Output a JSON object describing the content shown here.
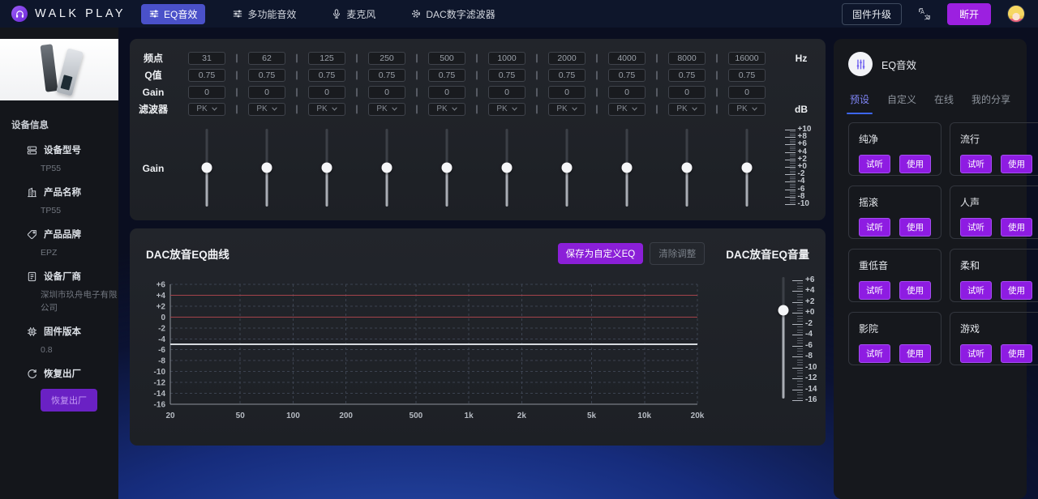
{
  "topbar": {
    "brand": "WALK PLAY",
    "tabs": [
      {
        "label": "EQ音效",
        "icon": "equalizer-icon",
        "active": true
      },
      {
        "label": "多功能音效",
        "icon": "equalizer-icon",
        "active": false
      },
      {
        "label": "麦克风",
        "icon": "mic-icon",
        "active": false
      },
      {
        "label": "DAC数字滤波器",
        "icon": "gear-icon",
        "active": false
      }
    ],
    "firmware_button": "固件升级",
    "disconnect_button": "断开"
  },
  "sidebar": {
    "section_title": "设备信息",
    "items": [
      {
        "icon": "device-model-icon",
        "label": "设备型号",
        "value": "TP55"
      },
      {
        "icon": "product-name-icon",
        "label": "产品名称",
        "value": "TP55"
      },
      {
        "icon": "brand-tag-icon",
        "label": "产品品牌",
        "value": "EPZ"
      },
      {
        "icon": "manufacturer-icon",
        "label": "设备厂商",
        "value": "深圳市玖舟电子有限公司"
      },
      {
        "icon": "firmware-chip-icon",
        "label": "固件版本",
        "value": "0.8"
      },
      {
        "icon": "factory-reset-icon",
        "label": "恢复出厂",
        "value": null,
        "button": "恢复出厂"
      }
    ]
  },
  "eq": {
    "row_labels": {
      "freq": "频点",
      "q": "Q值",
      "gain": "Gain",
      "filter": "滤波器",
      "slider": "Gain"
    },
    "units": {
      "freq": "Hz",
      "filter": "dB"
    },
    "bands": [
      {
        "freq": "31",
        "q": "0.75",
        "gain": "0",
        "filter": "PK"
      },
      {
        "freq": "62",
        "q": "0.75",
        "gain": "0",
        "filter": "PK"
      },
      {
        "freq": "125",
        "q": "0.75",
        "gain": "0",
        "filter": "PK"
      },
      {
        "freq": "250",
        "q": "0.75",
        "gain": "0",
        "filter": "PK"
      },
      {
        "freq": "500",
        "q": "0.75",
        "gain": "0",
        "filter": "PK"
      },
      {
        "freq": "1000",
        "q": "0.75",
        "gain": "0",
        "filter": "PK"
      },
      {
        "freq": "2000",
        "q": "0.75",
        "gain": "0",
        "filter": "PK"
      },
      {
        "freq": "4000",
        "q": "0.75",
        "gain": "0",
        "filter": "PK"
      },
      {
        "freq": "8000",
        "q": "0.75",
        "gain": "0",
        "filter": "PK"
      },
      {
        "freq": "16000",
        "q": "0.75",
        "gain": "0",
        "filter": "PK"
      }
    ],
    "gain_scale": [
      "+10",
      "+8",
      "+6",
      "+4",
      "+2",
      "+0",
      "-2",
      "-4",
      "-6",
      "-8",
      "-10"
    ],
    "slider_value_db": 0
  },
  "dac": {
    "curve_title": "DAC放音EQ曲线",
    "save_button": "保存为自定义EQ",
    "clear_button": "清除调整",
    "volume_title": "DAC放音EQ音量",
    "volume_scale": [
      "+6",
      "+4",
      "+2",
      "+0",
      "-2",
      "-4",
      "-6",
      "-8",
      "-10",
      "-12",
      "-14",
      "-16"
    ],
    "volume_value_db": 0
  },
  "chart_data": {
    "type": "line",
    "title": "DAC放音EQ曲线",
    "x_scale": "log",
    "xlim_hz": [
      20,
      20000
    ],
    "ylim": [
      -16,
      6
    ],
    "grid": "dashed",
    "x_ticks": [
      "20",
      "50",
      "100",
      "200",
      "500",
      "1k",
      "2k",
      "5k",
      "10k",
      "20k"
    ],
    "x_tick_hz": [
      20,
      50,
      100,
      200,
      500,
      1000,
      2000,
      5000,
      10000,
      20000
    ],
    "y_ticks": [
      "+6",
      "+4",
      "+2",
      "0",
      "-2",
      "-4",
      "-6",
      "-8",
      "-10",
      "-12",
      "-14",
      "-16"
    ],
    "series": [
      {
        "name": "upper-limit-line",
        "db": 4,
        "color": "#a4434b",
        "width": 1.2
      },
      {
        "name": "eq-response-curve",
        "db": 0,
        "color": "#a4434b",
        "width": 1.2
      },
      {
        "name": "output-level-line",
        "db": -5,
        "color": "#d7dade",
        "width": 2
      }
    ]
  },
  "right_panel": {
    "title": "EQ音效",
    "tabs": [
      {
        "label": "预设",
        "active": true
      },
      {
        "label": "自定义",
        "active": false
      },
      {
        "label": "在线",
        "active": false
      },
      {
        "label": "我的分享",
        "active": false
      }
    ],
    "presets": [
      {
        "name": "纯净"
      },
      {
        "name": "流行"
      },
      {
        "name": "摇滚"
      },
      {
        "name": "人声"
      },
      {
        "name": "重低音"
      },
      {
        "name": "柔和"
      },
      {
        "name": "影院"
      },
      {
        "name": "游戏"
      }
    ],
    "audition_label": "试听",
    "use_label": "使用"
  },
  "colors": {
    "accent_purple": "#9c20e0",
    "active_tab_blue": "#4a51c9",
    "preset_button_purple": "#8e1ce2",
    "save_button_purple": "#8b1fd8",
    "chart_red": "#a4434b",
    "chart_white_line": "#d7dade",
    "right_tab_active": "#7f85f5"
  }
}
